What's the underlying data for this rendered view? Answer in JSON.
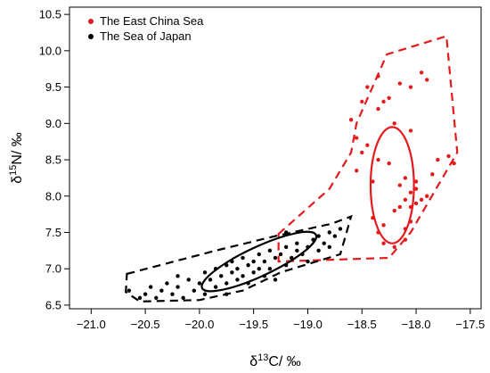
{
  "chart_data": {
    "type": "scatter",
    "title": "",
    "xlabel": {
      "prefix": "δ",
      "sup": "13",
      "suffix": "C/ ‰"
    },
    "ylabel": {
      "prefix": "δ",
      "sup": "15",
      "suffix": "N/ ‰"
    },
    "xlim": [
      -21.2,
      -17.4
    ],
    "ylim": [
      6.45,
      10.6
    ],
    "x_ticks": [
      "−21.0",
      "−20.5",
      "−20.0",
      "−19.5",
      "−19.0",
      "−18.5",
      "−18.0",
      "−17.5"
    ],
    "x_tick_values": [
      -21.0,
      -20.5,
      -20.0,
      -19.5,
      -19.0,
      -18.5,
      -18.0,
      -17.5
    ],
    "y_ticks": [
      "6.5",
      "7.0",
      "7.5",
      "8.0",
      "8.5",
      "9.0",
      "9.5",
      "10.0",
      "10.5"
    ],
    "y_tick_values": [
      6.5,
      7.0,
      7.5,
      8.0,
      8.5,
      9.0,
      9.5,
      10.0,
      10.5
    ],
    "grid": false,
    "legend_position": "top-left",
    "series": [
      {
        "name": "The East China Sea",
        "color": "#e41a1c",
        "hull": [
          [
            -19.27,
            7.48
          ],
          [
            -18.8,
            8.1
          ],
          [
            -18.6,
            8.6
          ],
          [
            -18.55,
            9.0
          ],
          [
            -18.27,
            9.95
          ],
          [
            -17.72,
            10.2
          ],
          [
            -17.62,
            8.6
          ],
          [
            -18.05,
            7.5
          ],
          [
            -18.25,
            7.15
          ],
          [
            -19.27,
            7.1
          ]
        ],
        "ellipse": {
          "center": [
            -18.22,
            8.15
          ],
          "rx": 0.2,
          "ry": 0.8
        },
        "points": [
          [
            -18.6,
            9.05
          ],
          [
            -18.5,
            9.3
          ],
          [
            -18.45,
            9.5
          ],
          [
            -18.35,
            9.65
          ],
          [
            -18.35,
            9.2
          ],
          [
            -18.3,
            9.3
          ],
          [
            -18.25,
            9.35
          ],
          [
            -18.15,
            9.55
          ],
          [
            -18.05,
            9.5
          ],
          [
            -17.95,
            9.7
          ],
          [
            -17.9,
            9.6
          ],
          [
            -18.2,
            9.0
          ],
          [
            -18.05,
            8.9
          ],
          [
            -18.55,
            8.8
          ],
          [
            -18.45,
            8.7
          ],
          [
            -18.5,
            8.6
          ],
          [
            -18.55,
            8.35
          ],
          [
            -18.4,
            8.2
          ],
          [
            -18.35,
            8.5
          ],
          [
            -18.25,
            8.45
          ],
          [
            -18.1,
            8.25
          ],
          [
            -18.15,
            8.15
          ],
          [
            -18.05,
            8.05
          ],
          [
            -18.0,
            8.1
          ],
          [
            -18.1,
            7.95
          ],
          [
            -18.15,
            7.85
          ],
          [
            -18.2,
            7.8
          ],
          [
            -18.05,
            7.85
          ],
          [
            -18.0,
            7.9
          ],
          [
            -17.95,
            7.95
          ],
          [
            -18.0,
            8.2
          ],
          [
            -17.9,
            8.0
          ],
          [
            -17.85,
            8.3
          ],
          [
            -17.8,
            8.5
          ],
          [
            -17.7,
            8.55
          ],
          [
            -17.65,
            8.45
          ],
          [
            -18.3,
            7.6
          ],
          [
            -18.35,
            7.5
          ],
          [
            -18.3,
            7.35
          ],
          [
            -18.2,
            7.3
          ],
          [
            -18.1,
            7.55
          ],
          [
            -18.05,
            7.65
          ],
          [
            -18.1,
            7.4
          ],
          [
            -18.4,
            7.7
          ]
        ]
      },
      {
        "name": "The Sea of Japan",
        "color": "#000000",
        "hull": [
          [
            -20.67,
            6.93
          ],
          [
            -19.85,
            7.25
          ],
          [
            -19.3,
            7.45
          ],
          [
            -18.78,
            7.62
          ],
          [
            -18.6,
            7.72
          ],
          [
            -18.7,
            7.2
          ],
          [
            -19.25,
            6.95
          ],
          [
            -19.6,
            6.7
          ],
          [
            -20.0,
            6.57
          ],
          [
            -20.55,
            6.55
          ],
          [
            -20.68,
            6.68
          ]
        ],
        "ellipse": {
          "center": [
            -19.45,
            7.1
          ],
          "rx": 0.58,
          "ry": 0.2,
          "angle_data_deg": 25
        },
        "points": [
          [
            -20.65,
            6.7
          ],
          [
            -20.55,
            6.6
          ],
          [
            -20.5,
            6.65
          ],
          [
            -20.45,
            6.75
          ],
          [
            -20.4,
            6.6
          ],
          [
            -20.35,
            6.7
          ],
          [
            -20.3,
            6.8
          ],
          [
            -20.25,
            6.65
          ],
          [
            -20.2,
            6.75
          ],
          [
            -20.15,
            6.6
          ],
          [
            -20.1,
            6.85
          ],
          [
            -20.05,
            6.7
          ],
          [
            -20.0,
            6.8
          ],
          [
            -19.95,
            6.65
          ],
          [
            -19.95,
            6.95
          ],
          [
            -19.9,
            6.85
          ],
          [
            -19.85,
            6.75
          ],
          [
            -19.85,
            7.0
          ],
          [
            -19.8,
            6.9
          ],
          [
            -19.75,
            6.8
          ],
          [
            -19.75,
            7.05
          ],
          [
            -19.7,
            6.95
          ],
          [
            -19.7,
            7.1
          ],
          [
            -19.65,
            6.85
          ],
          [
            -19.65,
            7.0
          ],
          [
            -19.6,
            7.15
          ],
          [
            -19.6,
            6.9
          ],
          [
            -19.55,
            7.05
          ],
          [
            -19.55,
            6.8
          ],
          [
            -19.5,
            7.1
          ],
          [
            -19.5,
            6.95
          ],
          [
            -19.45,
            7.0
          ],
          [
            -19.45,
            7.2
          ],
          [
            -19.4,
            6.9
          ],
          [
            -19.4,
            7.1
          ],
          [
            -19.35,
            7.25
          ],
          [
            -19.35,
            7.0
          ],
          [
            -19.3,
            7.15
          ],
          [
            -19.3,
            6.85
          ],
          [
            -19.25,
            7.2
          ],
          [
            -19.2,
            7.3
          ],
          [
            -19.2,
            7.05
          ],
          [
            -19.15,
            7.15
          ],
          [
            -19.1,
            7.25
          ],
          [
            -19.1,
            7.35
          ],
          [
            -19.05,
            7.2
          ],
          [
            -19.0,
            7.3
          ],
          [
            -19.0,
            7.1
          ],
          [
            -18.95,
            7.4
          ],
          [
            -18.9,
            7.25
          ],
          [
            -18.9,
            7.45
          ],
          [
            -18.85,
            7.35
          ],
          [
            -18.8,
            7.5
          ],
          [
            -18.8,
            7.3
          ],
          [
            -18.75,
            7.45
          ],
          [
            -18.7,
            7.55
          ],
          [
            -19.75,
            6.65
          ],
          [
            -20.2,
            6.9
          ],
          [
            -19.2,
            7.5
          ]
        ]
      }
    ]
  }
}
